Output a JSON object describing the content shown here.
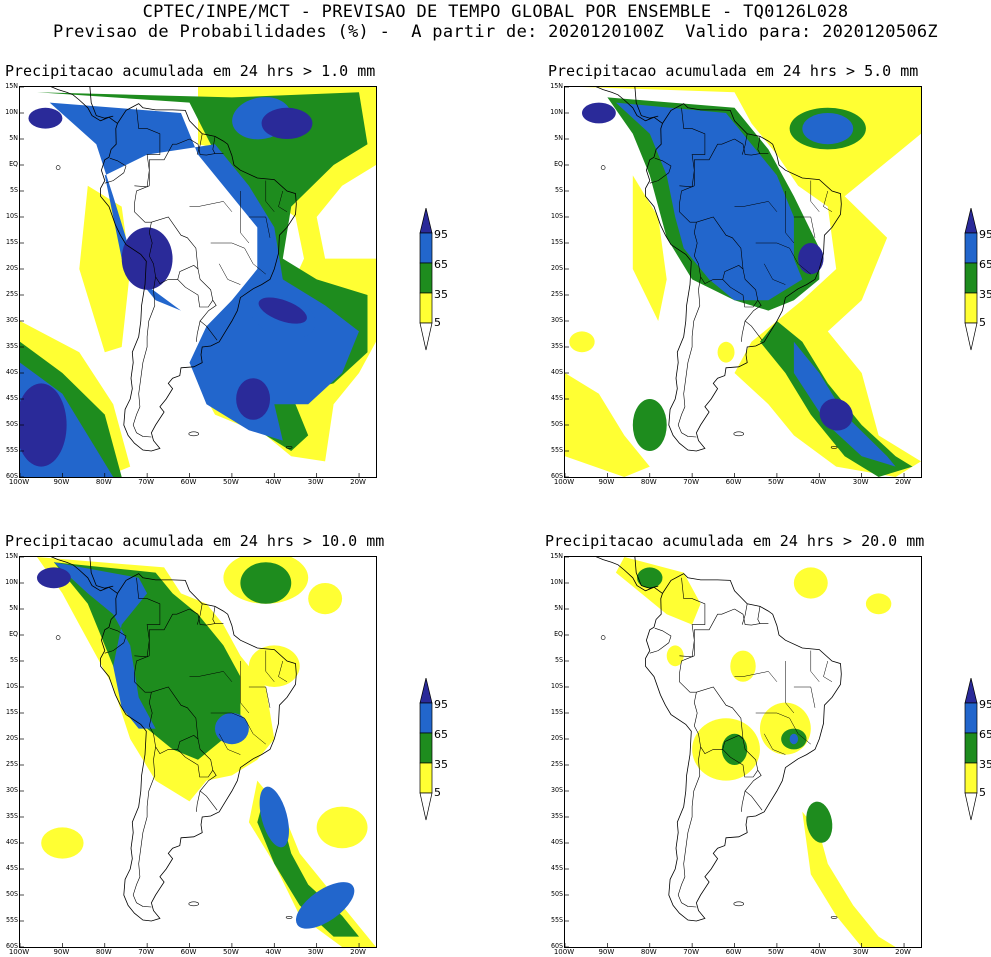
{
  "header": {
    "line1": "CPTEC/INPE/MCT - PREVISAO DE TEMPO GLOBAL POR ENSEMBLE - TQ0126L028",
    "line2": "Previsao de Probabilidades (%) -  A partir de: 2020120100Z  Valido para: 2020120506Z"
  },
  "axes": {
    "lat_labels": [
      "15N",
      "10N",
      "5N",
      "EQ",
      "5S",
      "10S",
      "15S",
      "20S",
      "25S",
      "30S",
      "35S",
      "40S",
      "45S",
      "50S",
      "55S",
      "60S"
    ],
    "lon_labels": [
      "100W",
      "90W",
      "80W",
      "70W",
      "60W",
      "50W",
      "40W",
      "30W",
      "20W"
    ]
  },
  "colorbar": {
    "levels": [
      "95",
      "65",
      "35",
      "5"
    ],
    "colors": {
      "c5": "#ffff33",
      "c35": "#1e8c1e",
      "c65": "#2266cc",
      "c95": "#2a2a99"
    }
  },
  "panels": [
    {
      "title": "Precipitacao acumulada em 24 hrs > 1.0 mm"
    },
    {
      "title": "Precipitacao acumulada em 24 hrs > 5.0 mm"
    },
    {
      "title": "Precipitacao acumulada em 24 hrs > 10.0 mm"
    },
    {
      "title": "Precipitacao acumulada em 24 hrs > 20.0 mm"
    }
  ]
}
